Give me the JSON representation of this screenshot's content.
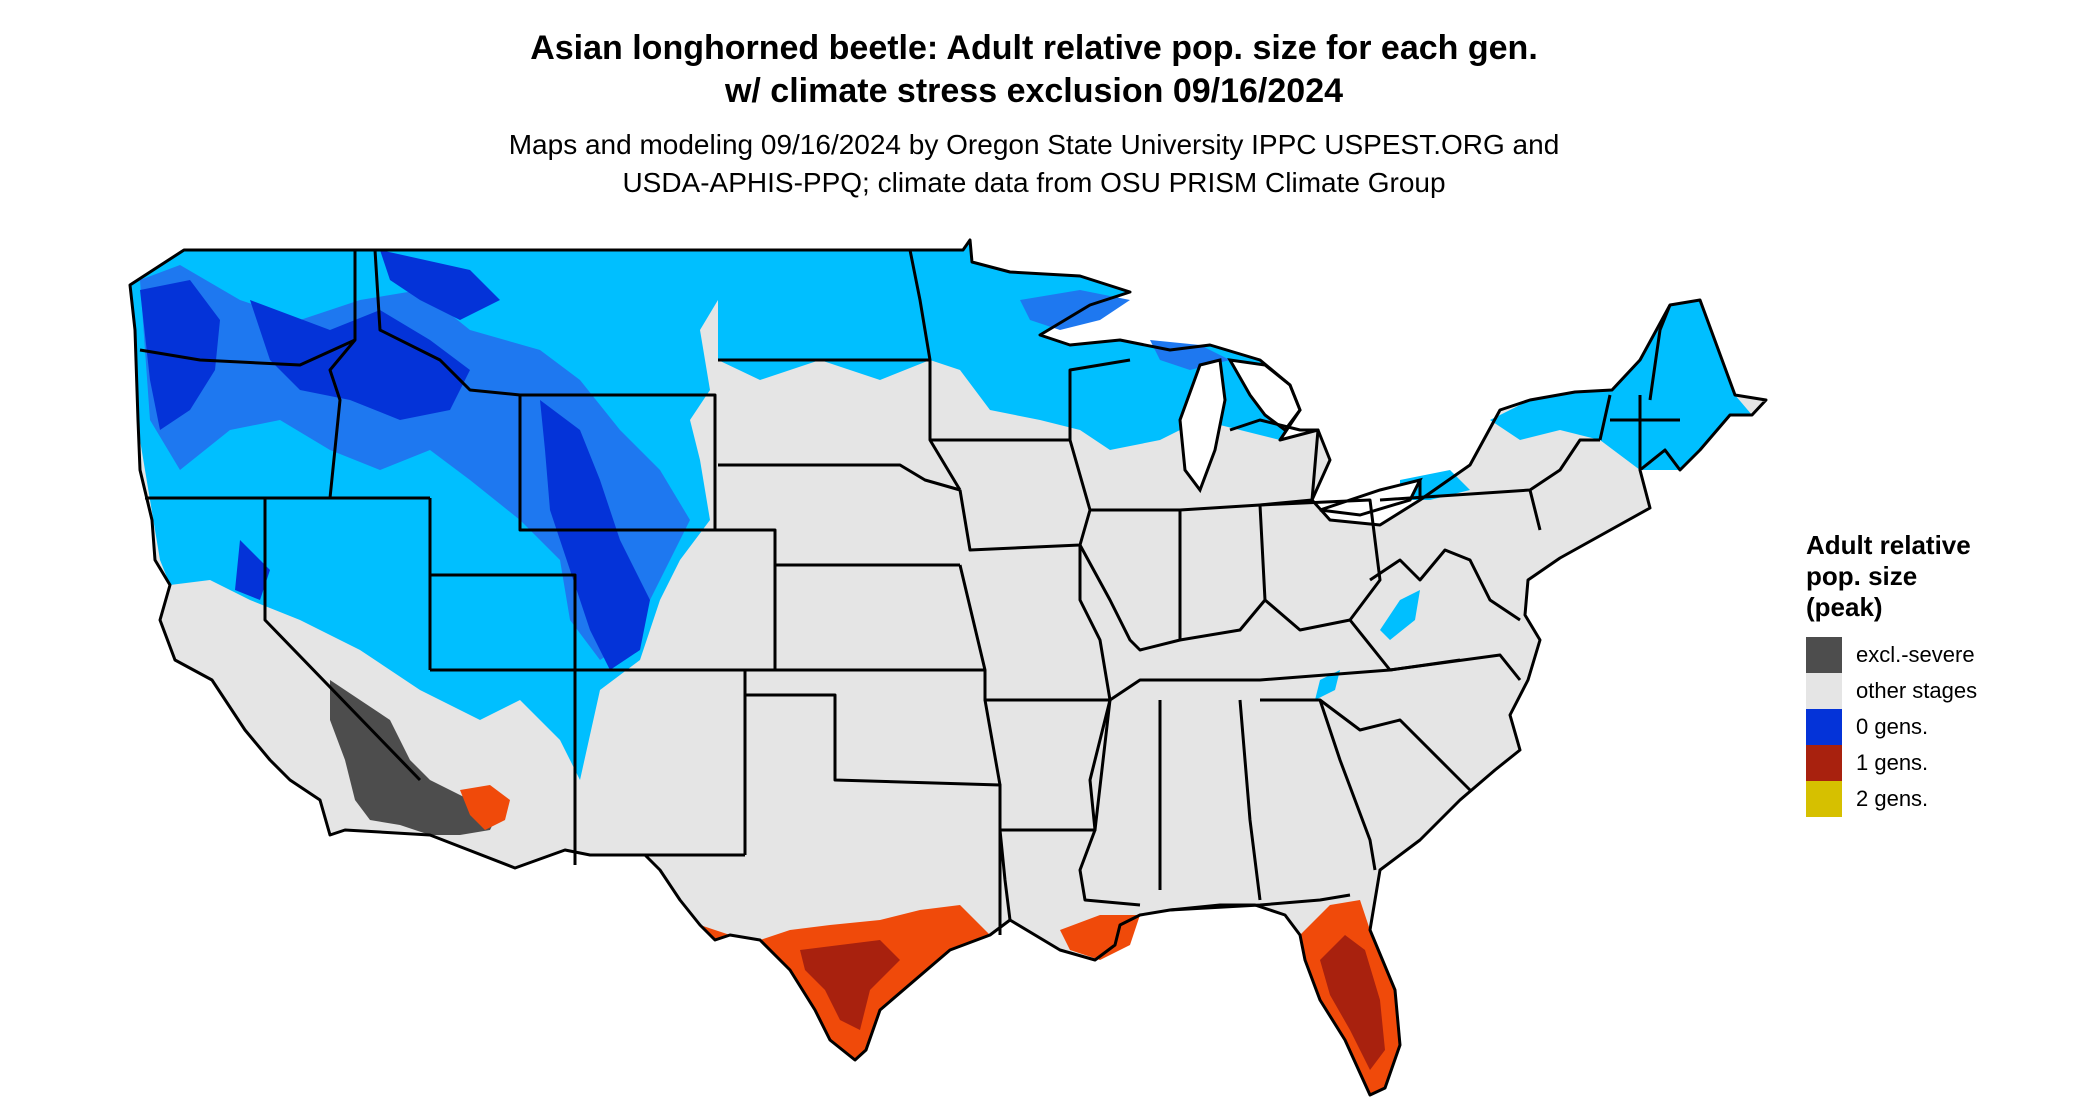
{
  "title": {
    "line1": "Asian longhorned beetle: Adult relative pop. size for each gen.",
    "line2": "w/ climate stress exclusion 09/16/2024"
  },
  "subtitle": {
    "line1": "Maps and modeling 09/16/2024 by Oregon State University IPPC USPEST.ORG and",
    "line2": "USDA-APHIS-PPQ; climate data from OSU PRISM Climate Group"
  },
  "legend": {
    "title_lines": [
      "Adult relative",
      "pop. size",
      "(peak)"
    ],
    "items": [
      {
        "label": "excl.-severe",
        "color": "#4d4d4d"
      },
      {
        "label": "other stages",
        "color": "#e5e5e5"
      },
      {
        "label": "0 gens.",
        "color": "#0433d8"
      },
      {
        "label": "1 gens.",
        "color": "#a8210e"
      },
      {
        "label": "2 gens.",
        "color": "#d6c000"
      }
    ]
  },
  "colors": {
    "land": "#e5e5e5",
    "light_blue": "#00bfff",
    "mid_blue": "#1e78f0",
    "dark_blue": "#0433d8",
    "red": "#a8210e",
    "orange_red": "#f04a0a",
    "excluded": "#4d4d4d",
    "borders": "#000000"
  }
}
